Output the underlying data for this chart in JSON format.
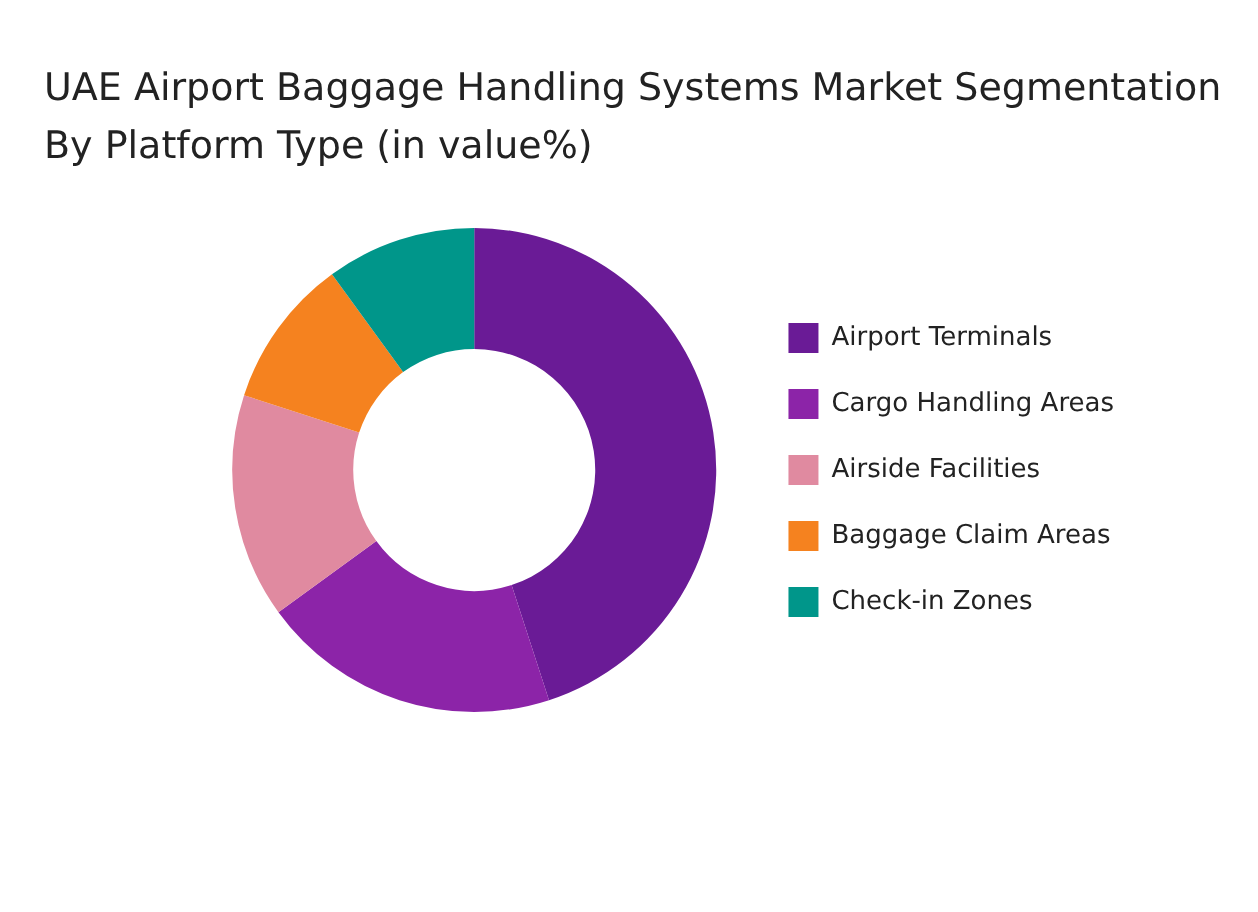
{
  "chart_data": {
    "type": "donut",
    "title": "UAE Airport Baggage Handling Systems Market Segmentation By Platform Type (in value%)",
    "categories": [
      "Airport Terminals",
      "Cargo Handling Areas",
      "Airside Facilities",
      "Baggage Claim Areas",
      "Check-in Zones"
    ],
    "values": [
      45,
      20,
      15,
      10,
      10
    ],
    "colors": [
      "#6a1b96",
      "#8c24a8",
      "#e08aa0",
      "#f5821f",
      "#00968a"
    ],
    "legend": "right"
  }
}
